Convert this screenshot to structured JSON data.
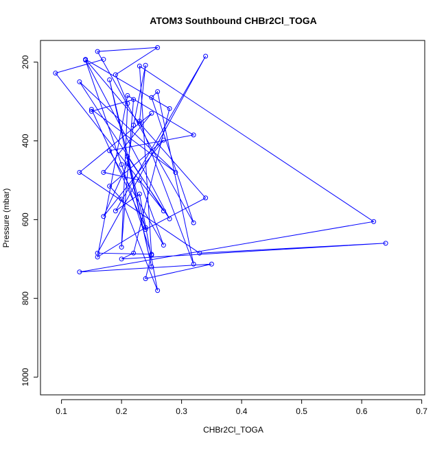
{
  "chart_data": {
    "type": "scatter",
    "mode": "lines+points",
    "title": "ATOM3 Southbound CHBr2Cl_TOGA",
    "xlabel": "CHBr2Cl_TOGA",
    "ylabel": "Pressure (mbar)",
    "xlim": [
      0.065,
      0.705
    ],
    "ylim": [
      145,
      1045
    ],
    "y_reversed": true,
    "grid": false,
    "legend": "none",
    "x_ticks": [
      0.1,
      0.2,
      0.3,
      0.4,
      0.5,
      0.6,
      0.7
    ],
    "x_tick_labels": [
      "0.1",
      "0.2",
      "0.3",
      "0.4",
      "0.5",
      "0.6",
      "0.7"
    ],
    "y_ticks": [
      200,
      400,
      600,
      800,
      1000
    ],
    "y_tick_labels": [
      "200",
      "400",
      "600",
      "800",
      "1000"
    ],
    "series": [
      {
        "color": "#0000ff",
        "x": [
          0.17,
          0.09,
          0.27,
          0.13,
          0.29,
          0.15,
          0.24,
          0.16,
          0.21,
          0.32,
          0.18,
          0.27,
          0.23,
          0.17,
          0.25,
          0.13,
          0.33,
          0.64,
          0.2,
          0.22,
          0.28,
          0.14,
          0.23,
          0.34,
          0.24,
          0.18,
          0.25,
          0.21,
          0.28,
          0.14,
          0.2,
          0.25,
          0.23,
          0.62,
          0.13,
          0.35,
          0.24,
          0.25,
          0.16,
          0.34,
          0.19,
          0.23,
          0.26,
          0.2,
          0.18,
          0.27,
          0.17,
          0.21,
          0.22,
          0.24,
          0.23,
          0.32,
          0.26,
          0.25,
          0.32,
          0.16,
          0.26,
          0.19,
          0.21,
          0.2,
          0.22,
          0.15
        ],
        "y": [
          193,
          228,
          578,
          250,
          480,
          320,
          620,
          695,
          285,
          385,
          425,
          665,
          500,
          480,
          330,
          480,
          685,
          660,
          700,
          685,
          318,
          193,
          355,
          545,
          625,
          245,
          720,
          440,
          598,
          195,
          460,
          690,
          210,
          605,
          733,
          713,
          750,
          688,
          685,
          185,
          578,
          535,
          780,
          548,
          515,
          398,
          592,
          458,
          360,
          208,
          350,
          713,
          275,
          290,
          608,
          173,
          163,
          232,
          305,
          670,
          295,
          325
        ]
      }
    ]
  }
}
